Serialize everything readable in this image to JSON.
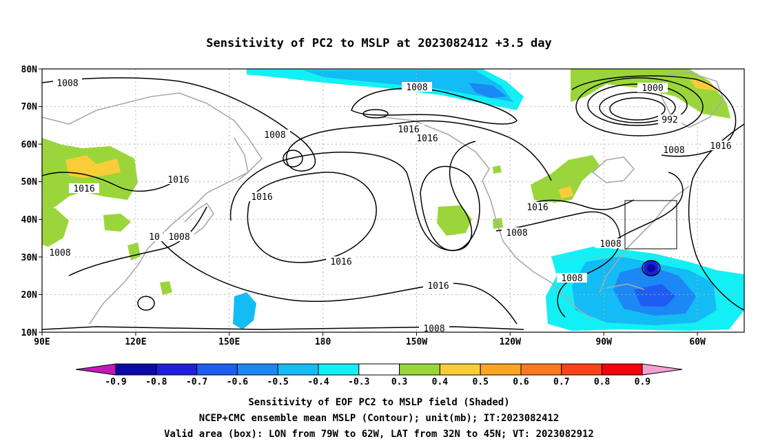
{
  "title": "Sensitivity of PC2 to MSLP at 2023082412 +3.5 day",
  "map": {
    "lat_labels": [
      "80N",
      "70N",
      "60N",
      "50N",
      "40N",
      "30N",
      "20N",
      "10N"
    ],
    "lon_labels": [
      "90E",
      "120E",
      "150E",
      "180",
      "150W",
      "120W",
      "90W",
      "60W"
    ],
    "valid_box": {
      "lon_from": "79W",
      "lon_to": "62W",
      "lat_from": "32N",
      "lat_to": "45N"
    },
    "contour_labels": [
      "1008",
      "1016",
      "1008",
      "1016",
      "1008",
      "1016",
      "1008",
      "1016",
      "1016",
      "1008",
      "1008",
      "1016",
      "1016",
      "1000",
      "992",
      "1008",
      "1016",
      "1016",
      "1008",
      "1008",
      "1008",
      "10",
      "1008"
    ]
  },
  "colorbar": {
    "ticks": [
      "-0.9",
      "-0.8",
      "-0.7",
      "-0.6",
      "-0.5",
      "-0.4",
      "-0.3",
      "0.3",
      "0.4",
      "0.5",
      "0.6",
      "0.7",
      "0.8",
      "0.9"
    ],
    "colors": [
      "#0a0aa8",
      "#1e1edc",
      "#1e5cf2",
      "#1b88f5",
      "#13bcf5",
      "#12f0f5",
      "#ffffff",
      "#9ad63a",
      "#f9cc38",
      "#ffa51f",
      "#ff7820",
      "#ff4218",
      "#f5020d"
    ],
    "low_arrow_color": "#c21ab8",
    "high_arrow_color": "#f5a0d2"
  },
  "captions": {
    "line1": "Sensitivity of EOF PC2 to MSLP field (Shaded)",
    "line2": "NCEP+CMC ensemble mean MSLP (Contour); unit(mb); IT:2023082412",
    "line3": "Valid area (box): LON from 79W to 62W, LAT from 32N to 45N; VT: 2023082912"
  }
}
